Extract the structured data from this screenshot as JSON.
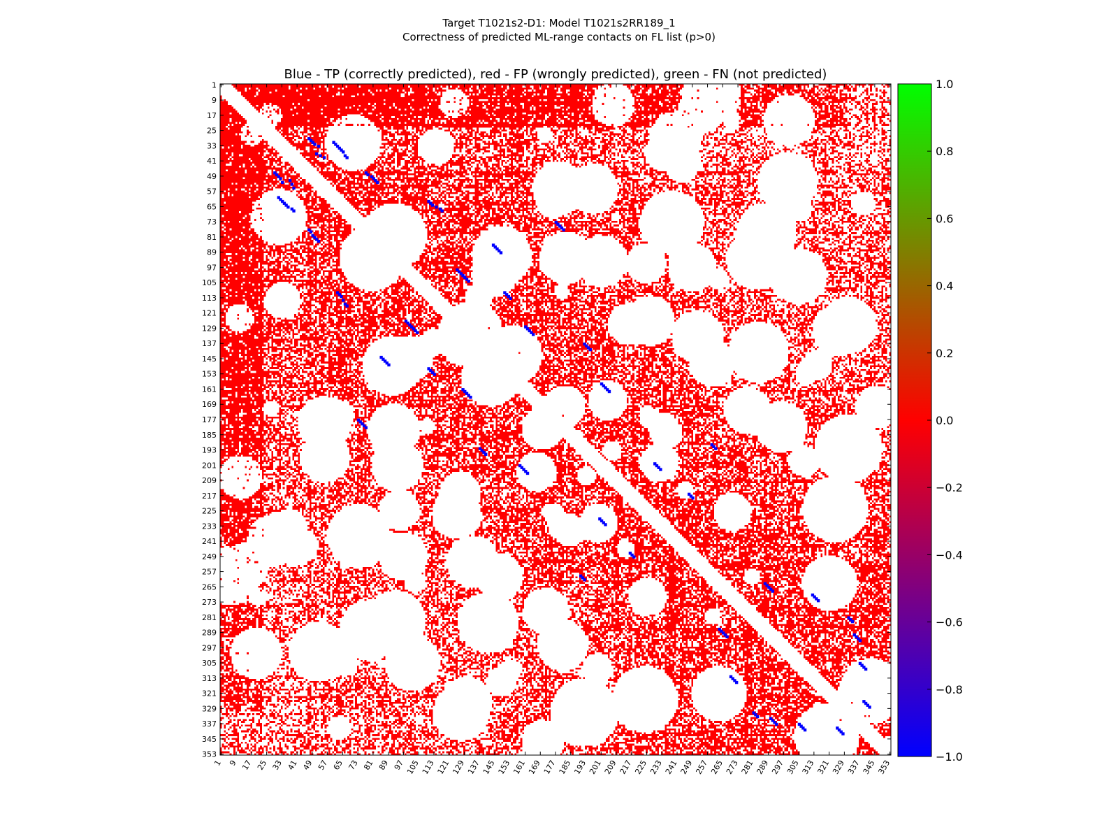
{
  "figure": {
    "title_line1": "Target T1021s2-D1: Model T1021s2RR189_1",
    "title_line2": "Correctness of predicted ML-range contacts on FL list (p>0)"
  },
  "chart_data": {
    "type": "heatmap",
    "title": "Blue - TP (correctly predicted), red - FP (wrongly predicted), green - FN (not predicted)",
    "xlabel": "",
    "ylabel": "",
    "n_residues": 353,
    "xlim": [
      1,
      353
    ],
    "ylim": [
      1,
      353
    ],
    "x_ticks": [
      1,
      9,
      17,
      25,
      33,
      41,
      49,
      57,
      65,
      73,
      81,
      89,
      97,
      105,
      113,
      121,
      129,
      137,
      145,
      153,
      161,
      169,
      177,
      185,
      193,
      201,
      209,
      217,
      225,
      233,
      241,
      249,
      257,
      265,
      273,
      281,
      289,
      297,
      305,
      313,
      321,
      329,
      337,
      345,
      353
    ],
    "y_ticks": [
      1,
      9,
      17,
      25,
      33,
      41,
      49,
      57,
      65,
      73,
      81,
      89,
      97,
      105,
      113,
      121,
      129,
      137,
      145,
      153,
      161,
      169,
      177,
      185,
      193,
      201,
      209,
      217,
      225,
      233,
      241,
      249,
      257,
      265,
      273,
      281,
      289,
      297,
      305,
      313,
      321,
      329,
      337,
      345,
      353
    ],
    "x_tick_labels": [
      "1",
      "9",
      "17",
      "25",
      "33",
      "41",
      "49",
      "57",
      "65",
      "73",
      "81",
      "89",
      "97",
      "105",
      "113",
      "121",
      "129",
      "137",
      "145",
      "153",
      "161",
      "169",
      "177",
      "185",
      "193",
      "201",
      "209",
      "217",
      "225",
      "233",
      "241",
      "249",
      "257",
      "265",
      "273",
      "281",
      "289",
      "297",
      "305",
      "313",
      "321",
      "329",
      "337",
      "345",
      "353"
    ],
    "y_tick_labels": [
      "1",
      "9",
      "17",
      "25",
      "33",
      "41",
      "49",
      "57",
      "65",
      "73",
      "81",
      "89",
      "97",
      "105",
      "113",
      "121",
      "129",
      "137",
      "145",
      "153",
      "161",
      "169",
      "177",
      "185",
      "193",
      "201",
      "209",
      "217",
      "225",
      "233",
      "241",
      "249",
      "257",
      "265",
      "273",
      "281",
      "289",
      "297",
      "305",
      "313",
      "321",
      "329",
      "337",
      "345",
      "353"
    ],
    "diagonal_exclusion": 6,
    "colorbar": {
      "range": [
        -1.0,
        1.0
      ],
      "ticks": [
        1.0,
        0.8,
        0.6,
        0.4,
        0.2,
        0.0,
        -0.2,
        -0.4,
        -0.6,
        -0.8,
        -1.0
      ],
      "tick_labels": [
        "1.0",
        "0.8",
        "0.6",
        "0.4",
        "0.2",
        "0.0",
        "−0.2",
        "−0.4",
        "−0.6",
        "−0.8",
        "−1.0"
      ],
      "colors": [
        "#0000ff",
        "#ff0000",
        "#00ff00"
      ]
    },
    "categories": [
      {
        "label": "TP",
        "value": -1.0,
        "color": "#0000ff"
      },
      {
        "label": "FP",
        "value": 0.0,
        "color": "#ff0000"
      },
      {
        "label": "FN",
        "value": 1.0,
        "color": "#00ff00"
      }
    ],
    "tp_contacts": [
      [
        29,
        47
      ],
      [
        30,
        48
      ],
      [
        31,
        49
      ],
      [
        32,
        50
      ],
      [
        33,
        52
      ],
      [
        37,
        51
      ],
      [
        38,
        53
      ],
      [
        39,
        55
      ],
      [
        31,
        60
      ],
      [
        32,
        61
      ],
      [
        33,
        62
      ],
      [
        34,
        63
      ],
      [
        35,
        64
      ],
      [
        36,
        65
      ],
      [
        38,
        66
      ],
      [
        39,
        67
      ],
      [
        47,
        77
      ],
      [
        48,
        78
      ],
      [
        49,
        80
      ],
      [
        50,
        81
      ],
      [
        51,
        82
      ],
      [
        52,
        83
      ],
      [
        62,
        110
      ],
      [
        63,
        111
      ],
      [
        64,
        112
      ],
      [
        65,
        114
      ],
      [
        66,
        116
      ],
      [
        67,
        117
      ],
      [
        98,
        125
      ],
      [
        99,
        126
      ],
      [
        100,
        127
      ],
      [
        101,
        128
      ],
      [
        102,
        129
      ],
      [
        103,
        130
      ],
      [
        104,
        131
      ],
      [
        85,
        144
      ],
      [
        86,
        145
      ],
      [
        87,
        146
      ],
      [
        88,
        147
      ],
      [
        89,
        148
      ],
      [
        73,
        177
      ],
      [
        74,
        178
      ],
      [
        75,
        179
      ],
      [
        76,
        180
      ],
      [
        77,
        181
      ],
      [
        128,
        161
      ],
      [
        129,
        162
      ],
      [
        130,
        163
      ],
      [
        131,
        164
      ],
      [
        132,
        165
      ],
      [
        158,
        201
      ],
      [
        159,
        202
      ],
      [
        160,
        203
      ],
      [
        161,
        204
      ],
      [
        162,
        205
      ],
      [
        200,
        229
      ],
      [
        201,
        230
      ],
      [
        202,
        231
      ],
      [
        203,
        232
      ],
      [
        216,
        247
      ],
      [
        217,
        248
      ],
      [
        218,
        249
      ],
      [
        263,
        287
      ],
      [
        264,
        288
      ],
      [
        265,
        289
      ],
      [
        266,
        290
      ],
      [
        267,
        291
      ],
      [
        269,
        312
      ],
      [
        270,
        313
      ],
      [
        271,
        314
      ],
      [
        272,
        315
      ],
      [
        290,
        334
      ],
      [
        291,
        335
      ],
      [
        292,
        336
      ],
      [
        293,
        337
      ],
      [
        305,
        337
      ],
      [
        306,
        338
      ],
      [
        307,
        339
      ],
      [
        308,
        340
      ],
      [
        325,
        339
      ],
      [
        326,
        340
      ],
      [
        327,
        341
      ],
      [
        328,
        342
      ],
      [
        281,
        331
      ],
      [
        282,
        332
      ],
      [
        283,
        333
      ],
      [
        190,
        259
      ],
      [
        191,
        260
      ],
      [
        192,
        261
      ],
      [
        137,
        192
      ],
      [
        138,
        193
      ],
      [
        139,
        194
      ],
      [
        140,
        195
      ],
      [
        110,
        150
      ],
      [
        111,
        151
      ],
      [
        112,
        152
      ],
      [
        113,
        153
      ]
    ]
  }
}
